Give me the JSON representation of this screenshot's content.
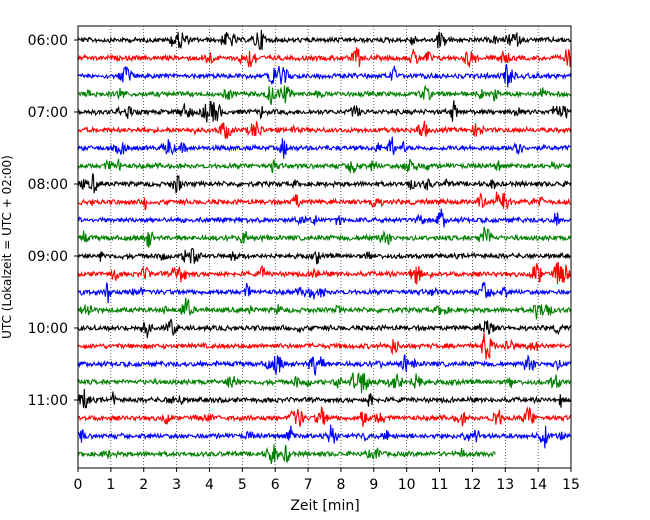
{
  "chart_data": {
    "type": "line",
    "title": "",
    "xlabel": "Zeit  [min]",
    "ylabel": "UTC (Lokalzeit = UTC + 02:00)",
    "xlim": [
      0,
      15
    ],
    "x_ticks": [
      0,
      1,
      2,
      3,
      4,
      5,
      6,
      7,
      8,
      9,
      10,
      11,
      12,
      13,
      14,
      15
    ],
    "y_hour_labels": [
      "06:00",
      "07:00",
      "08:00",
      "09:00",
      "10:00",
      "11:00"
    ],
    "grid": "vertical dotted at each minute",
    "trace_colors": [
      "#000000",
      "#ff0000",
      "#0000ff",
      "#008000"
    ],
    "trace_interval_min": 15,
    "series": [
      {
        "start": "06:00",
        "end_min": 15
      },
      {
        "start": "06:15",
        "end_min": 15
      },
      {
        "start": "06:30",
        "end_min": 15
      },
      {
        "start": "06:45",
        "end_min": 15
      },
      {
        "start": "07:00",
        "end_min": 15
      },
      {
        "start": "07:15",
        "end_min": 15
      },
      {
        "start": "07:30",
        "end_min": 15
      },
      {
        "start": "07:45",
        "end_min": 15
      },
      {
        "start": "08:00",
        "end_min": 15
      },
      {
        "start": "08:15",
        "end_min": 15
      },
      {
        "start": "08:30",
        "end_min": 15
      },
      {
        "start": "08:45",
        "end_min": 15
      },
      {
        "start": "09:00",
        "end_min": 15
      },
      {
        "start": "09:15",
        "end_min": 15
      },
      {
        "start": "09:30",
        "end_min": 15
      },
      {
        "start": "09:45",
        "end_min": 15
      },
      {
        "start": "10:00",
        "end_min": 15
      },
      {
        "start": "10:15",
        "end_min": 15
      },
      {
        "start": "10:30",
        "end_min": 15
      },
      {
        "start": "10:45",
        "end_min": 15
      },
      {
        "start": "11:00",
        "end_min": 15
      },
      {
        "start": "11:15",
        "end_min": 15
      },
      {
        "start": "11:30",
        "end_min": 15
      },
      {
        "start": "11:45",
        "end_min": 12.7
      }
    ]
  }
}
